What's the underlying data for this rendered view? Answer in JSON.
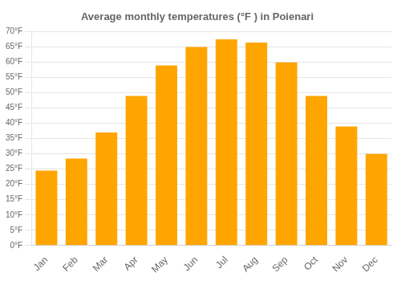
{
  "chart_data": {
    "type": "bar",
    "title": "Average monthly temperatures (°F ) in Poienari",
    "categories": [
      "Jan",
      "Feb",
      "Mar",
      "Apr",
      "May",
      "Jun",
      "Jul",
      "Aug",
      "Sep",
      "Oct",
      "Nov",
      "Dec"
    ],
    "values": [
      24.5,
      28.5,
      37,
      49,
      59,
      65,
      67.5,
      66.5,
      60,
      49,
      39,
      30
    ],
    "color": "#FFA500",
    "ylim": [
      0,
      70
    ],
    "yticks": [
      {
        "value": 0,
        "label": "0°F"
      },
      {
        "value": 5,
        "label": "5°F"
      },
      {
        "value": 10,
        "label": "10°F"
      },
      {
        "value": 15,
        "label": "15°F"
      },
      {
        "value": 20,
        "label": "20°F"
      },
      {
        "value": 25,
        "label": "25°F"
      },
      {
        "value": 30,
        "label": "30°F"
      },
      {
        "value": 35,
        "label": "35°F"
      },
      {
        "value": 40,
        "label": "40°F"
      },
      {
        "value": 45,
        "label": "45°F"
      },
      {
        "value": 50,
        "label": "50°F"
      },
      {
        "value": 55,
        "label": "55°F"
      },
      {
        "value": 60,
        "label": "60°F"
      },
      {
        "value": 65,
        "label": "65°F"
      },
      {
        "value": 70,
        "label": "70°F"
      }
    ],
    "grid": true
  }
}
